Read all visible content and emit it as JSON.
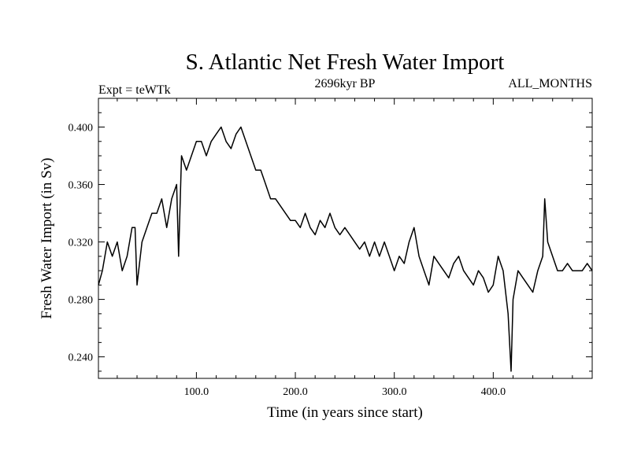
{
  "chart_data": {
    "type": "line",
    "title": "S. Atlantic Net Fresh Water Import",
    "subtitle_left": "Expt = teWTk",
    "subtitle_center": "2696kyr BP",
    "subtitle_right": "ALL_MONTHS",
    "xlabel": "Time (in years since start)",
    "ylabel": "Fresh Water Import (in Sv)",
    "xlim": [
      1,
      500
    ],
    "ylim": [
      0.225,
      0.42
    ],
    "x_ticks": [
      100,
      200,
      300,
      400
    ],
    "x_tick_labels": [
      "100.0",
      "200.0",
      "300.0",
      "400.0"
    ],
    "y_ticks": [
      0.24,
      0.28,
      0.32,
      0.36,
      0.4
    ],
    "y_tick_labels": [
      "0.240",
      "0.280",
      "0.320",
      "0.360",
      "0.400"
    ],
    "grid": false,
    "series": [
      {
        "name": "Fresh Water Import",
        "x": [
          1,
          5,
          10,
          15,
          20,
          25,
          30,
          35,
          38,
          40,
          45,
          50,
          55,
          60,
          65,
          70,
          75,
          80,
          82,
          85,
          90,
          95,
          100,
          105,
          110,
          115,
          120,
          125,
          130,
          135,
          140,
          145,
          150,
          155,
          160,
          165,
          170,
          175,
          180,
          185,
          190,
          195,
          200,
          205,
          210,
          215,
          220,
          225,
          230,
          235,
          240,
          245,
          250,
          255,
          260,
          265,
          270,
          275,
          280,
          285,
          290,
          295,
          300,
          305,
          310,
          315,
          320,
          325,
          330,
          335,
          340,
          345,
          350,
          355,
          360,
          365,
          370,
          375,
          380,
          385,
          390,
          395,
          400,
          405,
          410,
          415,
          418,
          420,
          425,
          430,
          435,
          440,
          445,
          450,
          452,
          455,
          460,
          465,
          470,
          475,
          480,
          485,
          490,
          495,
          500
        ],
        "values": [
          0.29,
          0.3,
          0.32,
          0.31,
          0.32,
          0.3,
          0.31,
          0.33,
          0.33,
          0.29,
          0.32,
          0.33,
          0.34,
          0.34,
          0.35,
          0.33,
          0.35,
          0.36,
          0.31,
          0.38,
          0.37,
          0.38,
          0.39,
          0.39,
          0.38,
          0.39,
          0.395,
          0.4,
          0.39,
          0.385,
          0.395,
          0.4,
          0.39,
          0.38,
          0.37,
          0.37,
          0.36,
          0.35,
          0.35,
          0.345,
          0.34,
          0.335,
          0.335,
          0.33,
          0.34,
          0.33,
          0.325,
          0.335,
          0.33,
          0.34,
          0.33,
          0.325,
          0.33,
          0.325,
          0.32,
          0.315,
          0.32,
          0.31,
          0.32,
          0.31,
          0.32,
          0.31,
          0.3,
          0.31,
          0.305,
          0.32,
          0.33,
          0.31,
          0.3,
          0.29,
          0.31,
          0.305,
          0.3,
          0.295,
          0.305,
          0.31,
          0.3,
          0.295,
          0.29,
          0.3,
          0.295,
          0.285,
          0.29,
          0.31,
          0.3,
          0.27,
          0.23,
          0.28,
          0.3,
          0.295,
          0.29,
          0.285,
          0.3,
          0.31,
          0.35,
          0.32,
          0.31,
          0.3,
          0.3,
          0.305,
          0.3,
          0.3,
          0.3,
          0.305,
          0.3
        ]
      }
    ]
  }
}
